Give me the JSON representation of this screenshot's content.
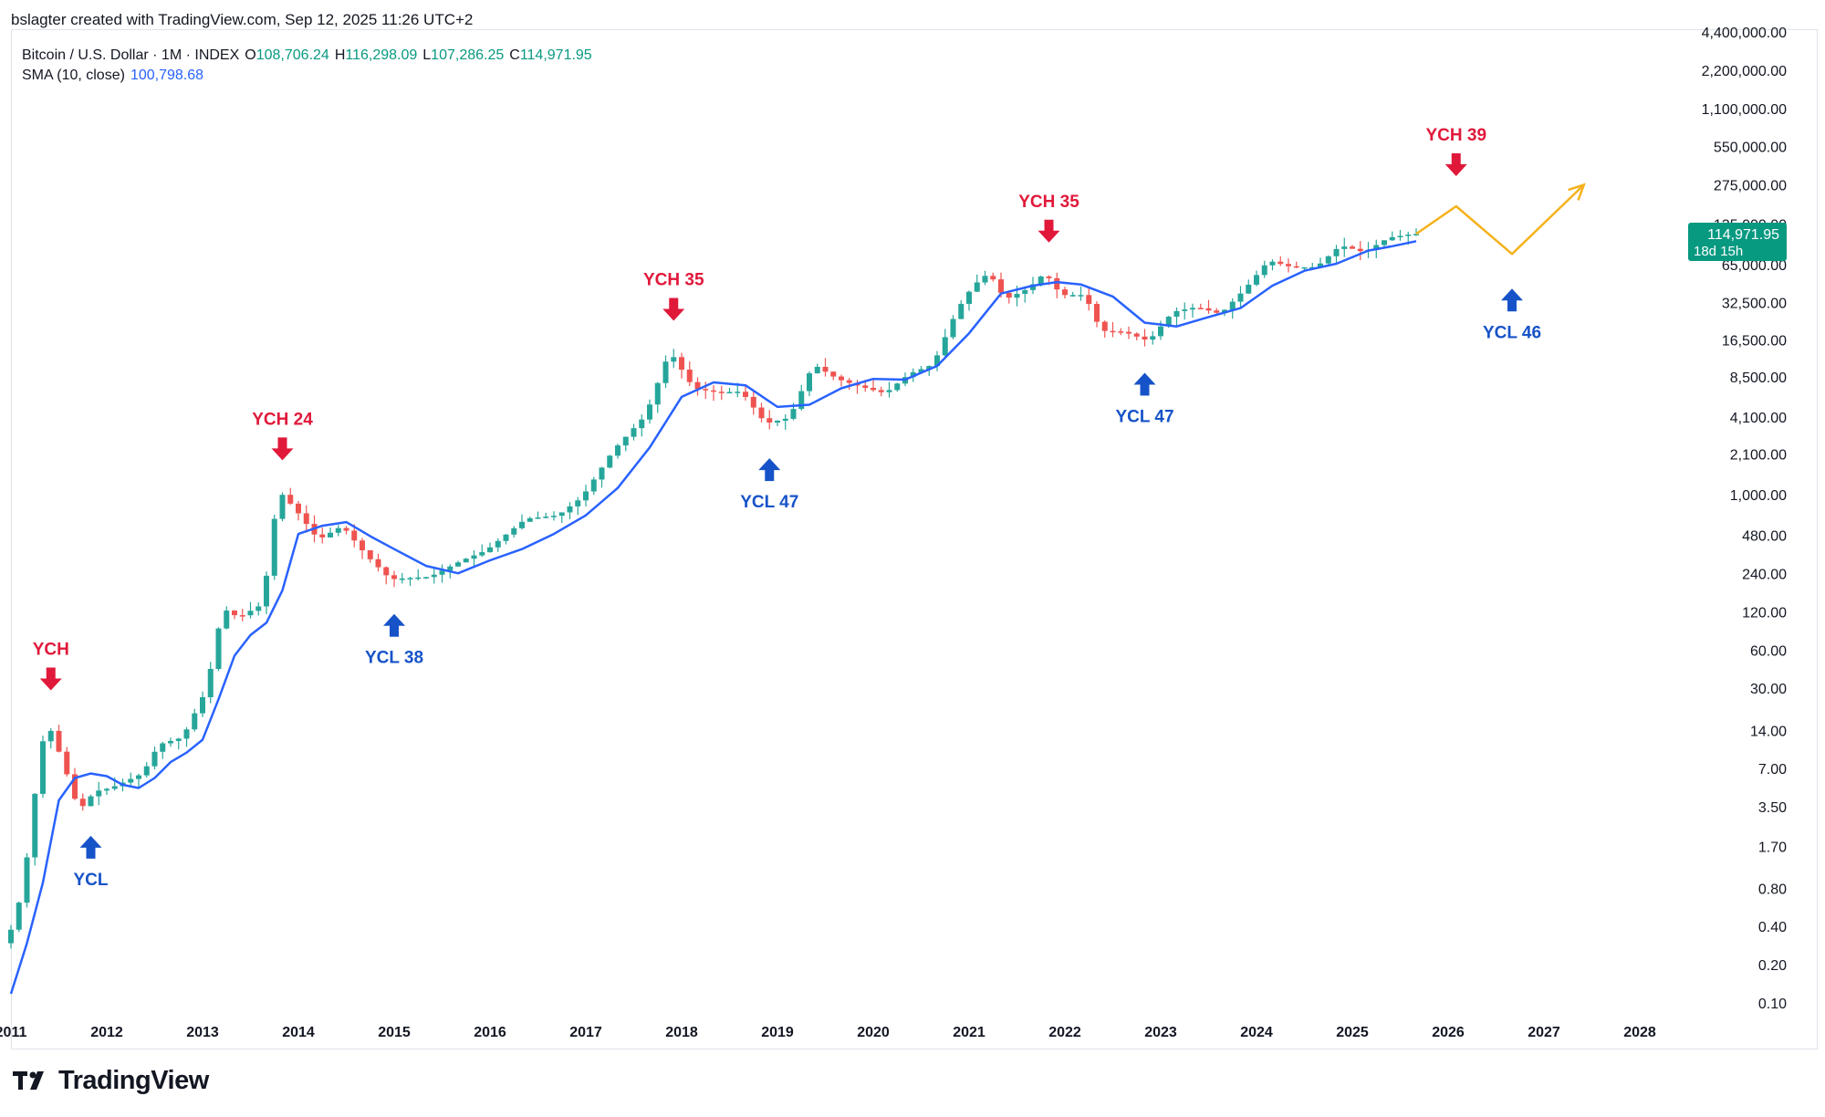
{
  "attribution": "bslagter created with TradingView.com, Sep 12, 2025 11:26 UTC+2",
  "legend": {
    "symbol": "Bitcoin / U.S. Dollar · 1M · INDEX",
    "open_label": "O",
    "open": "108,706.24",
    "high_label": "H",
    "high": "116,298.09",
    "low_label": "L",
    "low": "107,286.25",
    "close_label": "C",
    "close": "114,971.95",
    "sma_label": "SMA (10, close)",
    "sma_value": "100,798.68"
  },
  "price_badge": {
    "price": "114,971.95",
    "countdown": "18d 15h"
  },
  "brand": "TradingView",
  "colors": {
    "up": "#26a69a",
    "down": "#ef5350",
    "sma": "#2962ff",
    "ych": "#e0193a",
    "ycl": "#1753c8",
    "projection": "#f5b21b",
    "axis_text": "#131722",
    "badge_bg": "#089981"
  },
  "chart_data": {
    "type": "candlestick",
    "scale": "log",
    "x_tick_labels": [
      "2011",
      "2012",
      "2013",
      "2014",
      "2015",
      "2016",
      "2017",
      "2018",
      "2019",
      "2020",
      "2021",
      "2022",
      "2023",
      "2024",
      "2025",
      "2026",
      "2027",
      "2028"
    ],
    "y_tick_labels": [
      "4,400,000.00",
      "2,200,000.00",
      "1,100,000.00",
      "550,000.00",
      "275,000.00",
      "135,000.00",
      "65,000.00",
      "32,500.00",
      "16,500.00",
      "8,500.00",
      "4,100.00",
      "2,100.00",
      "1,000.00",
      "480.00",
      "240.00",
      "120.00",
      "60.00",
      "30.00",
      "14.00",
      "7.00",
      "3.50",
      "1.70",
      "0.80",
      "0.40",
      "0.20",
      "0.10"
    ],
    "y_tick_values": [
      4400000,
      2200000,
      1100000,
      550000,
      275000,
      135000,
      65000,
      32500,
      16500,
      8500,
      4100,
      2100,
      1000,
      480,
      240,
      120,
      60,
      30,
      14,
      7,
      3.5,
      1.7,
      0.8,
      0.4,
      0.2,
      0.1
    ],
    "series": [
      {
        "name": "SMA (10, close)",
        "points": [
          [
            "2011-01",
            0.12
          ],
          [
            "2011-03",
            0.3
          ],
          [
            "2011-05",
            0.9
          ],
          [
            "2011-07",
            4
          ],
          [
            "2011-09",
            6
          ],
          [
            "2011-11",
            6.5
          ],
          [
            "2012-01",
            6.2
          ],
          [
            "2012-03",
            5.3
          ],
          [
            "2012-05",
            5
          ],
          [
            "2012-07",
            6
          ],
          [
            "2012-09",
            8
          ],
          [
            "2012-11",
            9.5
          ],
          [
            "2013-01",
            12
          ],
          [
            "2013-03",
            25
          ],
          [
            "2013-05",
            55
          ],
          [
            "2013-07",
            80
          ],
          [
            "2013-09",
            100
          ],
          [
            "2013-11",
            180
          ],
          [
            "2014-01",
            500
          ],
          [
            "2014-04",
            580
          ],
          [
            "2014-07",
            620
          ],
          [
            "2014-10",
            480
          ],
          [
            "2015-01",
            380
          ],
          [
            "2015-05",
            280
          ],
          [
            "2015-09",
            245
          ],
          [
            "2016-01",
            310
          ],
          [
            "2016-05",
            380
          ],
          [
            "2016-09",
            500
          ],
          [
            "2017-01",
            700
          ],
          [
            "2017-05",
            1150
          ],
          [
            "2017-09",
            2400
          ],
          [
            "2018-01",
            6000
          ],
          [
            "2018-05",
            7800
          ],
          [
            "2018-09",
            7400
          ],
          [
            "2019-01",
            5000
          ],
          [
            "2019-05",
            5200
          ],
          [
            "2019-09",
            7000
          ],
          [
            "2020-01",
            8300
          ],
          [
            "2020-05",
            8200
          ],
          [
            "2020-09",
            10500
          ],
          [
            "2021-01",
            19000
          ],
          [
            "2021-05",
            39000
          ],
          [
            "2021-09",
            45000
          ],
          [
            "2021-12",
            48000
          ],
          [
            "2022-03",
            46000
          ],
          [
            "2022-07",
            37000
          ],
          [
            "2022-11",
            23000
          ],
          [
            "2023-03",
            21500
          ],
          [
            "2023-07",
            25500
          ],
          [
            "2023-11",
            30000
          ],
          [
            "2024-03",
            45000
          ],
          [
            "2024-07",
            59000
          ],
          [
            "2024-11",
            67000
          ],
          [
            "2025-03",
            85000
          ],
          [
            "2025-06",
            92000
          ],
          [
            "2025-09",
            100798.68
          ]
        ]
      },
      {
        "name": "Projection",
        "points": [
          [
            "2025-09",
            114971.95
          ],
          [
            "2026-02",
            190000
          ],
          [
            "2026-09",
            80000
          ],
          [
            "2027-06",
            280000
          ]
        ]
      }
    ],
    "candle_anchors": [
      [
        "2011-01",
        0.3
      ],
      [
        "2011-03",
        0.8
      ],
      [
        "2011-05",
        8
      ],
      [
        "2011-06",
        17
      ],
      [
        "2011-08",
        8
      ],
      [
        "2011-10",
        3.3
      ],
      [
        "2011-12",
        4.7
      ],
      [
        "2012-02",
        5
      ],
      [
        "2012-06",
        6.5
      ],
      [
        "2012-08",
        11
      ],
      [
        "2012-11",
        12.5
      ],
      [
        "2013-02",
        30
      ],
      [
        "2013-04",
        130
      ],
      [
        "2013-06",
        110
      ],
      [
        "2013-09",
        140
      ],
      [
        "2013-11",
        1100
      ],
      [
        "2014-01",
        800
      ],
      [
        "2014-04",
        450
      ],
      [
        "2014-07",
        580
      ],
      [
        "2014-10",
        340
      ],
      [
        "2015-01",
        220
      ],
      [
        "2015-06",
        230
      ],
      [
        "2015-10",
        310
      ],
      [
        "2016-01",
        370
      ],
      [
        "2016-06",
        660
      ],
      [
        "2016-10",
        700
      ],
      [
        "2017-01",
        970
      ],
      [
        "2017-05",
        2300
      ],
      [
        "2017-09",
        4300
      ],
      [
        "2017-12",
        13800
      ],
      [
        "2018-03",
        7000
      ],
      [
        "2018-06",
        6500
      ],
      [
        "2018-09",
        6600
      ],
      [
        "2018-12",
        3700
      ],
      [
        "2019-03",
        4100
      ],
      [
        "2019-06",
        10800
      ],
      [
        "2019-09",
        8300
      ],
      [
        "2019-12",
        7200
      ],
      [
        "2020-03",
        6400
      ],
      [
        "2020-06",
        9100
      ],
      [
        "2020-09",
        10800
      ],
      [
        "2020-12",
        29000
      ],
      [
        "2021-02",
        45000
      ],
      [
        "2021-04",
        57000
      ],
      [
        "2021-06",
        35000
      ],
      [
        "2021-09",
        43000
      ],
      [
        "2021-11",
        57000
      ],
      [
        "2022-01",
        38000
      ],
      [
        "2022-04",
        38000
      ],
      [
        "2022-06",
        19900
      ],
      [
        "2022-09",
        19400
      ],
      [
        "2022-12",
        16500
      ],
      [
        "2023-03",
        28000
      ],
      [
        "2023-06",
        30500
      ],
      [
        "2023-09",
        27000
      ],
      [
        "2023-12",
        42000
      ],
      [
        "2024-03",
        71000
      ],
      [
        "2024-06",
        62700
      ],
      [
        "2024-09",
        63000
      ],
      [
        "2024-12",
        93400
      ],
      [
        "2025-03",
        82500
      ],
      [
        "2025-06",
        107000
      ],
      [
        "2025-09",
        114971.95
      ]
    ],
    "annotations": [
      {
        "text": "YCH",
        "type": "cycle-high",
        "date": "2011-06"
      },
      {
        "text": "YCL",
        "type": "cycle-low",
        "date": "2011-11"
      },
      {
        "text": "YCH 24",
        "type": "cycle-high",
        "date": "2013-11"
      },
      {
        "text": "YCL 38",
        "type": "cycle-low",
        "date": "2015-01"
      },
      {
        "text": "YCH 35",
        "type": "cycle-high",
        "date": "2017-12"
      },
      {
        "text": "YCL 47",
        "type": "cycle-low",
        "date": "2018-12"
      },
      {
        "text": "YCH 35",
        "type": "cycle-high",
        "date": "2021-11"
      },
      {
        "text": "YCL 47",
        "type": "cycle-low",
        "date": "2022-11"
      },
      {
        "text": "YCH 39",
        "type": "cycle-high",
        "date": "2026-02"
      },
      {
        "text": "YCL 46",
        "type": "cycle-low",
        "date": "2026-09"
      }
    ]
  }
}
